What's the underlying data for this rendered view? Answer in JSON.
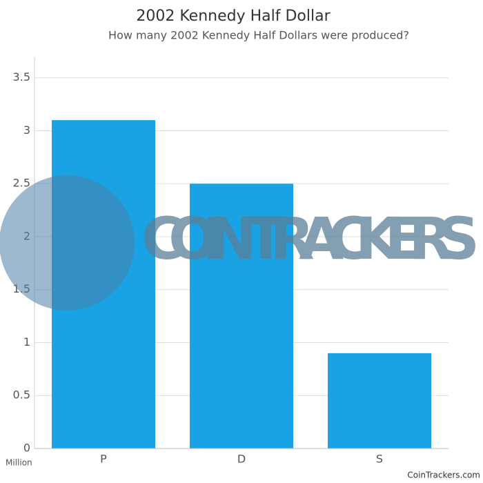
{
  "chart_data": {
    "type": "bar",
    "title": "2002 Kennedy Half Dollar",
    "subtitle": "How many 2002 Kennedy Half Dollars were produced?",
    "categories": [
      "P",
      "D",
      "S"
    ],
    "values": [
      3.1,
      2.5,
      0.9
    ],
    "color": "#1aa3e4",
    "ylim": [
      0,
      3.7
    ],
    "yticks": [
      0,
      0.5,
      1,
      1.5,
      2,
      2.5,
      3,
      3.5
    ],
    "grid": true,
    "y_unit": "Million",
    "source": "CoinTrackers.com",
    "watermark": "COIN TRACKERS"
  }
}
